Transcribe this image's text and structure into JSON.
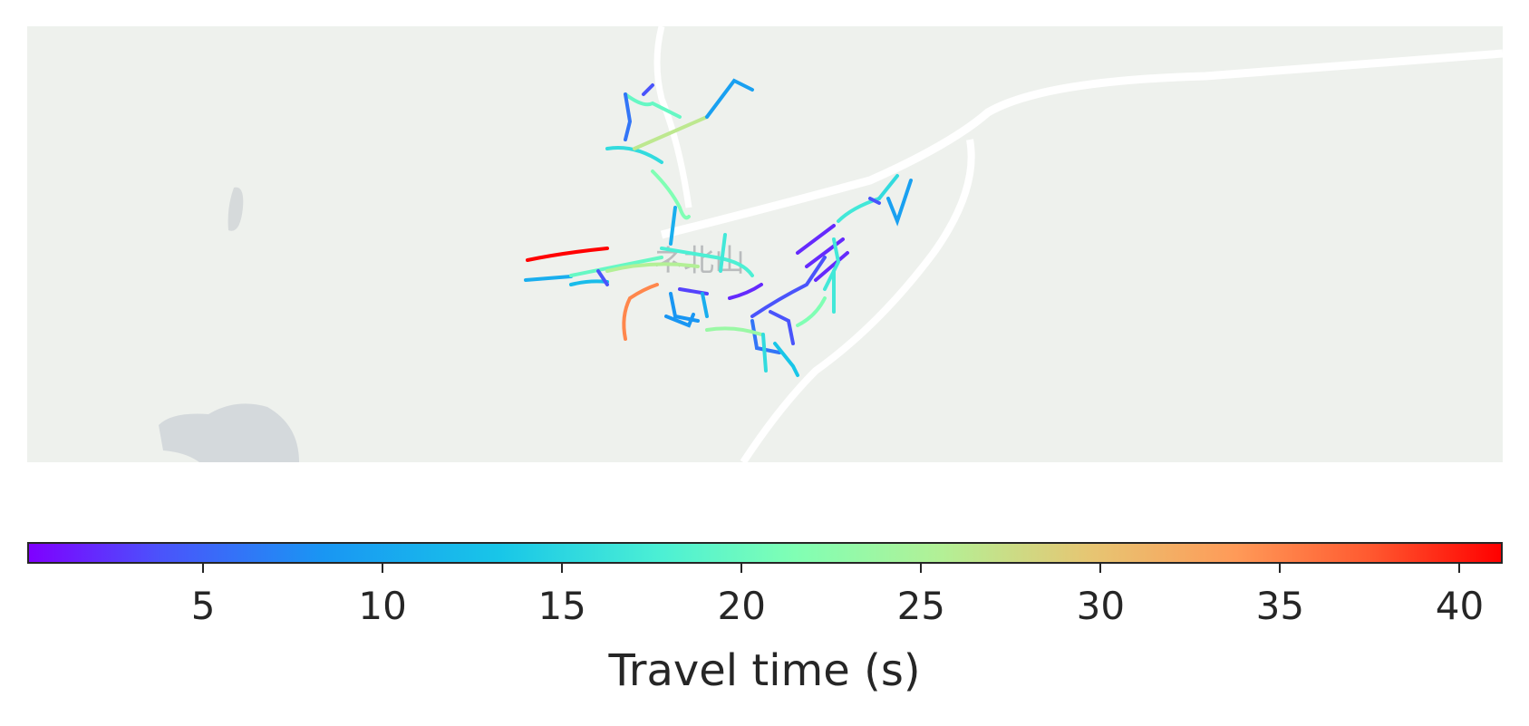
{
  "map": {
    "place_label": "ネ北山",
    "land_color": "#eef1ed",
    "water_color": "#d6dbdd",
    "road_color": "#ffffff"
  },
  "colorbar": {
    "label": "Travel time (s)",
    "min": 0.1,
    "max": 41.2,
    "ticks": [
      "5",
      "10",
      "15",
      "20",
      "25",
      "30",
      "35",
      "40"
    ],
    "tick_values": [
      5,
      10,
      15,
      20,
      25,
      30,
      35,
      40
    ],
    "colormap": "rainbow"
  }
}
